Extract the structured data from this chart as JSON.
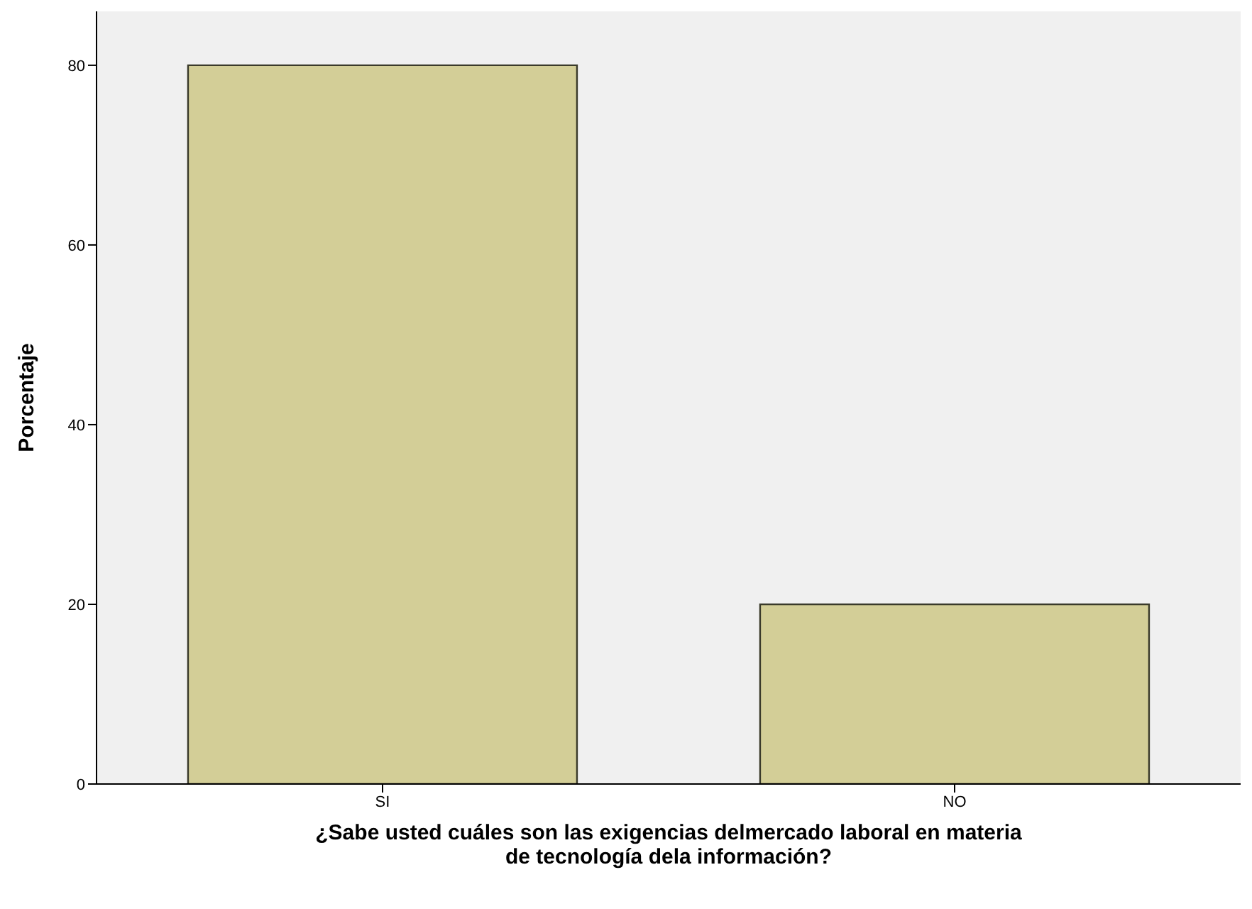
{
  "chart_data": {
    "type": "bar",
    "xlabel": "¿Sabe usted cuáles son las exigencias delmercado laboral en materia de tecnología dela información?",
    "ylabel": "Porcentaje",
    "categories": [
      "SI",
      "NO"
    ],
    "values": [
      80,
      20
    ],
    "color": "#d3ce97",
    "ylim": [
      0,
      86
    ],
    "yticks": [
      0,
      20,
      40,
      60,
      80
    ]
  }
}
